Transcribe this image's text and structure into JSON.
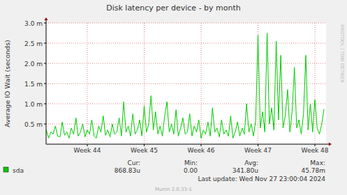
{
  "chart_data": {
    "type": "line",
    "title": "Disk latency per device - by month",
    "y_label": "Average IO Wait (seconds)",
    "watermark": "RRDTOOL / TOBI OETIKER",
    "x": [
      43.28,
      43.32,
      43.36,
      43.4,
      43.44,
      43.48,
      43.52,
      43.56,
      43.6,
      43.64,
      43.68,
      43.72,
      43.76,
      43.8,
      43.84,
      43.88,
      43.92,
      43.96,
      44,
      44.04,
      44.08,
      44.12,
      44.16,
      44.2,
      44.24,
      44.28,
      44.32,
      44.36,
      44.4,
      44.44,
      44.48,
      44.52,
      44.56,
      44.6,
      44.64,
      44.68,
      44.72,
      44.76,
      44.8,
      44.84,
      44.88,
      44.92,
      44.96,
      45,
      45.04,
      45.08,
      45.12,
      45.16,
      45.2,
      45.24,
      45.28,
      45.32,
      45.36,
      45.4,
      45.44,
      45.48,
      45.52,
      45.56,
      45.6,
      45.64,
      45.68,
      45.72,
      45.76,
      45.8,
      45.84,
      45.88,
      45.92,
      45.96,
      46,
      46.04,
      46.08,
      46.12,
      46.16,
      46.2,
      46.24,
      46.28,
      46.32,
      46.36,
      46.4,
      46.44,
      46.48,
      46.52,
      46.56,
      46.6,
      46.64,
      46.68,
      46.72,
      46.76,
      46.8,
      46.84,
      46.88,
      46.92,
      46.96,
      47,
      47.04,
      47.08,
      47.12,
      47.16,
      47.2,
      47.24,
      47.28,
      47.32,
      47.36,
      47.4,
      47.44,
      47.48,
      47.52,
      47.56,
      47.6,
      47.64,
      47.68,
      47.72,
      47.76,
      47.8,
      47.84,
      47.88,
      47.92,
      47.96,
      48,
      48.04,
      48.08,
      48.12,
      48.16
    ],
    "series": [
      {
        "name": "sda",
        "color": "#00CC00",
        "values": [
          0.00035,
          0.00015,
          0.0003,
          0.00025,
          0.00045,
          0.0002,
          0.00018,
          0.00055,
          0.00022,
          0.0003,
          0.00015,
          0.0004,
          0.00025,
          0.00065,
          0.0002,
          0.0003,
          0.0005,
          0.00018,
          0.00035,
          0.00025,
          0.0006,
          0.0002,
          0.00015,
          0.00045,
          0.0003,
          0.0007,
          0.00022,
          0.00035,
          0.00018,
          0.0005,
          0.00025,
          0.0003,
          0.00065,
          0.0002,
          0.00105,
          0.0003,
          0.00045,
          0.0002,
          0.00075,
          0.00025,
          0.00035,
          0.0006,
          0.0002,
          0.00095,
          0.0003,
          0.0005,
          0.0012,
          0.00035,
          0.0008,
          0.00025,
          0.00045,
          0.0002,
          0.0007,
          0.00105,
          0.0003,
          0.0005,
          0.00025,
          0.00085,
          0.0002,
          0.0004,
          0.00065,
          0.00025,
          0.0003,
          0.00075,
          0.0002,
          0.00045,
          0.0003,
          0.0006,
          0.00015,
          0.00035,
          0.00025,
          0.00055,
          0.0002,
          0.0009,
          0.0003,
          0.0004,
          0.00018,
          0.0006,
          0.00025,
          0.00035,
          0.0002,
          0.0007,
          0.00015,
          0.0003,
          0.00055,
          0.0002,
          0.0004,
          0.00025,
          0.001,
          0.0003,
          0.0005,
          0.0002,
          0.0006,
          0.0027,
          0.0004,
          0.0008,
          0.0003,
          0.00275,
          0.0005,
          0.0009,
          0.00035,
          0.00255,
          0.0006,
          0.0022,
          0.0004,
          0.0007,
          0.00135,
          0.0003,
          0.0008,
          0.0019,
          0.0004,
          0.0006,
          0.00025,
          0.00075,
          0.0022,
          0.00035,
          0.001,
          0.0003,
          0.0011,
          0.0004,
          0.00025,
          0.0005,
          0.00087
        ]
      }
    ],
    "xlim": [
      43.276,
      48.196
    ],
    "xticks": [
      {
        "value": 44,
        "label": "Week 44"
      },
      {
        "value": 45,
        "label": "Week 45"
      },
      {
        "value": 46,
        "label": "Week 46"
      },
      {
        "value": 47,
        "label": "Week 47"
      },
      {
        "value": 48,
        "label": "Week 48"
      }
    ],
    "ylim": [
      0,
      0.003
    ],
    "yticks": [
      {
        "value": 0.0005,
        "label": "0.5 m"
      },
      {
        "value": 0.001,
        "label": "1.0 m"
      },
      {
        "value": 0.0015,
        "label": "1.5 m"
      },
      {
        "value": 0.002,
        "label": "2.0 m"
      },
      {
        "value": 0.0025,
        "label": "2.5 m"
      },
      {
        "value": 0.003,
        "label": "3.0 m"
      }
    ],
    "grid": true,
    "legend_stats": {
      "labels": [
        "Cur:",
        "Min:",
        "Avg:",
        "Max:"
      ],
      "values": [
        "868.83u",
        "0.00",
        "341.80u",
        "45.78m"
      ]
    },
    "last_update": "Last update: Wed Nov 27 23:00:04 2024",
    "footer": "Munin 2.0.33-1"
  }
}
